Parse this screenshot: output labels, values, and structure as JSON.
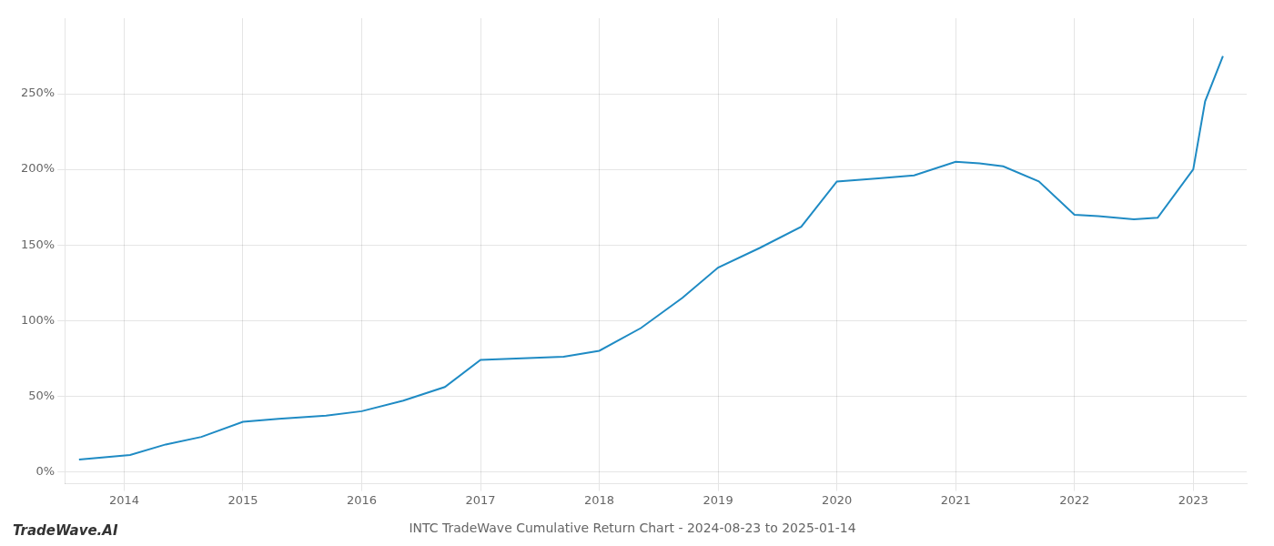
{
  "chart_data": {
    "type": "line",
    "title": "INTC TradeWave Cumulative Return Chart - 2024-08-23 to 2025-01-14",
    "annotations": [
      "TradeWave.AI"
    ],
    "x": [
      2013.62,
      2014.05,
      2014.35,
      2014.65,
      2015.0,
      2015.3,
      2015.7,
      2016.0,
      2016.35,
      2016.7,
      2017.0,
      2017.35,
      2017.7,
      2018.0,
      2018.35,
      2018.7,
      2019.0,
      2019.35,
      2019.7,
      2020.0,
      2020.35,
      2020.65,
      2021.0,
      2021.2,
      2021.4,
      2021.7,
      2022.0,
      2022.2,
      2022.5,
      2022.7,
      2023.0,
      2023.1,
      2023.25
    ],
    "values": [
      8,
      11,
      18,
      23,
      33,
      35,
      37,
      40,
      47,
      56,
      74,
      75,
      76,
      80,
      95,
      115,
      135,
      148,
      162,
      192,
      194,
      196,
      205,
      204,
      202,
      192,
      170,
      169,
      167,
      168,
      200,
      245,
      275
    ],
    "color": "#1f8bc4",
    "xlim": [
      2013.5,
      2023.45
    ],
    "xticks": [
      2014,
      2015,
      2016,
      2017,
      2018,
      2019,
      2020,
      2021,
      2022,
      2023
    ],
    "ylim": [
      -8,
      300
    ],
    "yticks": [
      {
        "value": 0,
        "label": "0%"
      },
      {
        "value": 50,
        "label": "50%"
      },
      {
        "value": 100,
        "label": "100%"
      },
      {
        "value": 150,
        "label": "150%"
      },
      {
        "value": 200,
        "label": "200%"
      },
      {
        "value": 250,
        "label": "250%"
      }
    ],
    "grid": true
  }
}
